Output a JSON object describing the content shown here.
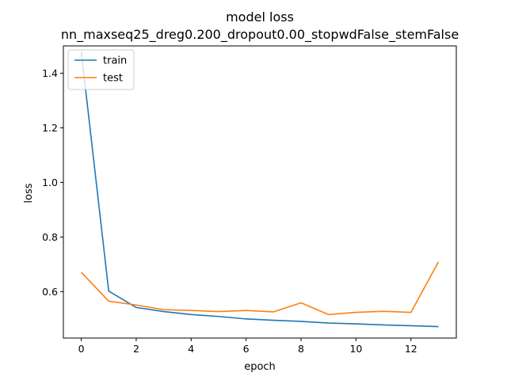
{
  "chart_data": {
    "type": "line",
    "title": "model loss",
    "subtitle": "nn_maxseq25_dreg0.200_dropout0.00_stopwdFalse_stemFalse",
    "xlabel": "epoch",
    "ylabel": "loss",
    "x": [
      0,
      1,
      2,
      3,
      4,
      5,
      6,
      7,
      8,
      9,
      10,
      11,
      12,
      13
    ],
    "xlim": [
      -0.65,
      13.65
    ],
    "ylim": [
      0.43,
      1.5
    ],
    "xticks": [
      0,
      2,
      4,
      6,
      8,
      10,
      12
    ],
    "yticks": [
      0.6,
      0.8,
      1.0,
      1.2,
      1.4
    ],
    "ytick_labels": [
      "0.6",
      "0.8",
      "1.0",
      "1.2",
      "1.4"
    ],
    "grid": false,
    "legend_position": "upper left",
    "series": [
      {
        "name": "train",
        "color": "#1f77b4",
        "values": [
          1.48,
          0.602,
          0.542,
          0.527,
          0.516,
          0.509,
          0.5,
          0.495,
          0.491,
          0.485,
          0.482,
          0.478,
          0.475,
          0.472
        ]
      },
      {
        "name": "test",
        "color": "#ff7f0e",
        "values": [
          0.671,
          0.565,
          0.551,
          0.534,
          0.531,
          0.527,
          0.531,
          0.526,
          0.559,
          0.516,
          0.524,
          0.528,
          0.524,
          0.709
        ]
      }
    ]
  }
}
